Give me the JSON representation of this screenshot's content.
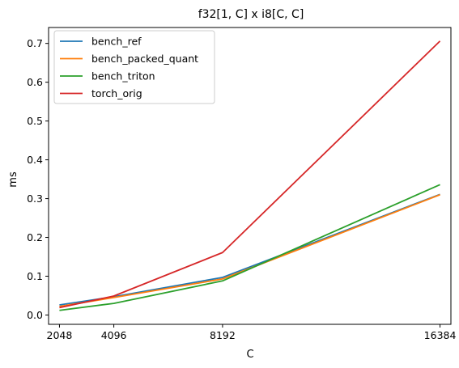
{
  "chart_data": {
    "type": "line",
    "title": "f32[1, C] x i8[C, C]",
    "xlabel": "C",
    "ylabel": "ms",
    "x": [
      2048,
      4096,
      8192,
      16384
    ],
    "x_ticks": [
      "2048",
      "4096",
      "8192",
      "16384"
    ],
    "xlim": [
      1638,
      16794
    ],
    "ylim": [
      -0.024,
      0.741
    ],
    "y_ticks": [
      0.0,
      0.1,
      0.2,
      0.3,
      0.4,
      0.5,
      0.6,
      0.7
    ],
    "y_tick_labels": [
      "0.0",
      "0.1",
      "0.2",
      "0.3",
      "0.4",
      "0.5",
      "0.6",
      "0.7"
    ],
    "grid": false,
    "legend_position": "top-left",
    "series": [
      {
        "name": "bench_ref",
        "color": "#1f77b4",
        "values": [
          0.026,
          0.047,
          0.097,
          0.311
        ]
      },
      {
        "name": "bench_packed_quant",
        "color": "#ff7f0e",
        "values": [
          0.022,
          0.045,
          0.093,
          0.31
        ]
      },
      {
        "name": "bench_triton",
        "color": "#2ca02c",
        "values": [
          0.012,
          0.03,
          0.088,
          0.336
        ]
      },
      {
        "name": "torch_orig",
        "color": "#d62728",
        "values": [
          0.019,
          0.049,
          0.161,
          0.706
        ]
      }
    ]
  }
}
